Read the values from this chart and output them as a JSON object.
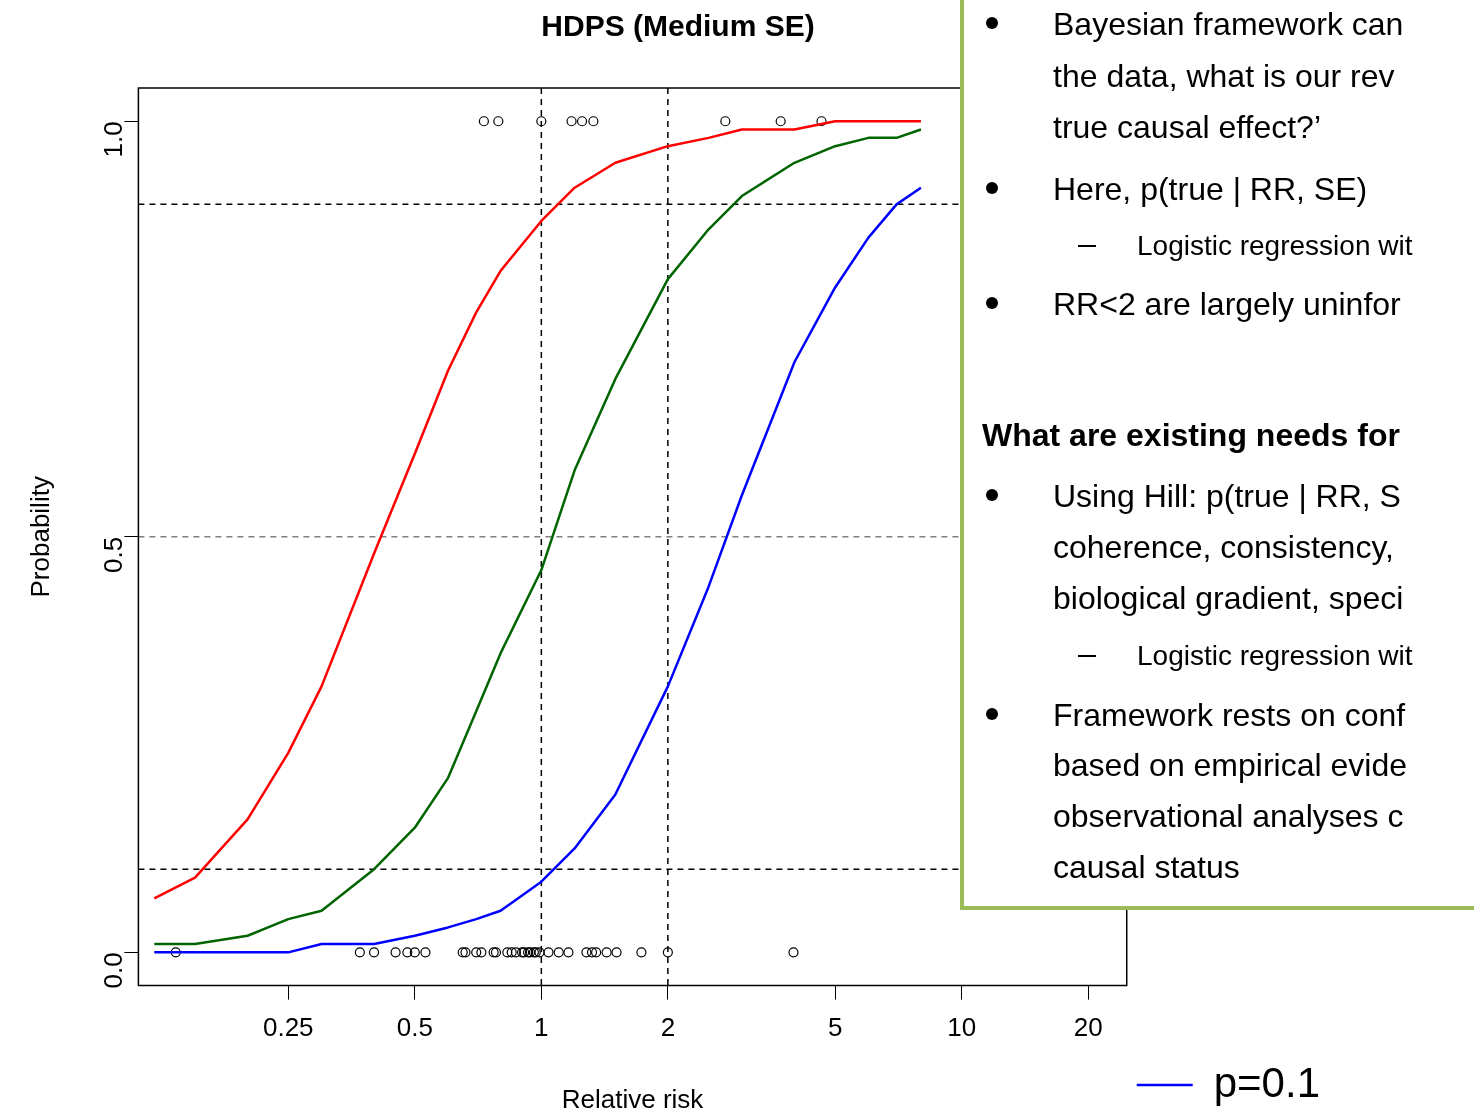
{
  "chart_data": [
    {
      "type": "line",
      "title": "HDPS (Medium SE)",
      "xlabel": "Relative risk",
      "ylabel": "Probability",
      "log": "x",
      "legend": "right",
      "marker": "none",
      "line_style": "solid",
      "x": [
        0.12,
        0.15,
        0.2,
        0.25,
        0.3,
        0.4,
        0.5,
        0.6,
        0.7,
        0.8,
        1,
        1.2,
        1.5,
        2,
        2.5,
        3,
        4,
        5,
        6,
        7,
        8
      ],
      "xlim": [
        0.11,
        24.7
      ],
      "xticks": [
        0.25,
        0.5,
        1,
        2,
        5,
        10,
        20
      ],
      "ylim": [
        -0.04,
        1.04
      ],
      "yticks": [
        {
          "value": 0,
          "label": "0.0"
        },
        {
          "value": 0.5,
          "label": "0.5"
        },
        {
          "value": 1,
          "label": "1.0"
        }
      ],
      "series": [
        {
          "color": "#ff0000",
          "values": [
            0.065,
            0.09,
            0.16,
            0.24,
            0.32,
            0.48,
            0.6,
            0.7,
            0.77,
            0.82,
            0.88,
            0.92,
            0.95,
            0.97,
            0.98,
            0.99,
            0.99,
            1.0,
            1.0,
            1.0,
            1.0
          ]
        },
        {
          "color": "#006400",
          "values": [
            0.01,
            0.01,
            0.02,
            0.04,
            0.05,
            0.1,
            0.15,
            0.21,
            0.29,
            0.36,
            0.46,
            0.58,
            0.69,
            0.81,
            0.87,
            0.91,
            0.95,
            0.97,
            0.98,
            0.98,
            0.99
          ]
        },
        {
          "name": "p=0.1",
          "color": "#0000ff",
          "values": [
            0,
            0,
            0,
            0,
            0.01,
            0.01,
            0.02,
            0.03,
            0.04,
            0.05,
            0.085,
            0.125,
            0.19,
            0.32,
            0.44,
            0.55,
            0.71,
            0.8,
            0.86,
            0.9,
            0.92
          ]
        },
        {
          "type": "scatter",
          "color": "#000000",
          "marker": "circle",
          "x": [
            0.73,
            0.79,
            1.0,
            1.18,
            1.25,
            1.33,
            2.74,
            3.71,
            4.64,
            0.135,
            0.37,
            0.4,
            0.45,
            0.48,
            0.5,
            0.53,
            0.65,
            0.66,
            0.7,
            0.72,
            0.77,
            0.78,
            0.83,
            0.85,
            0.87,
            0.9,
            0.91,
            0.93,
            0.94,
            0.96,
            0.97,
            0.99,
            1.04,
            1.1,
            1.16,
            1.28,
            1.32,
            1.35,
            1.43,
            1.51,
            1.73,
            2.0,
            3.98
          ],
          "values": [
            1,
            1,
            1,
            1,
            1,
            1,
            1,
            1,
            1,
            0,
            0,
            0,
            0,
            0,
            0,
            0,
            0,
            0,
            0,
            0,
            0,
            0,
            0,
            0,
            0,
            0,
            0,
            0,
            0,
            0,
            0,
            0,
            0,
            0,
            0,
            0,
            0,
            0,
            0,
            0,
            0,
            0,
            0
          ]
        }
      ],
      "ref_lines": [
        {
          "axis": "y",
          "value": 0.1,
          "color": "#000000",
          "line_style": "dashed"
        },
        {
          "axis": "y",
          "value": 0.9,
          "color": "#000000",
          "line_style": "dashed"
        },
        {
          "axis": "y",
          "value": 0.5,
          "color": "#808080",
          "line_style": "dashed"
        },
        {
          "axis": "x",
          "value": 1,
          "color": "#000000",
          "line_style": "dashed"
        },
        {
          "axis": "x",
          "value": 2,
          "color": "#000000",
          "line_style": "dashed"
        }
      ]
    },
    {
      "type": "other",
      "annotations": [
        "Bayesian framework can",
        "the data, what is our rev",
        "true causal effect?’",
        "Here, p(true | RR, SE)",
        "Logistic regression wit",
        "RR<2 are largely uninfor",
        "What are existing needs for",
        "Using Hill: p(true | RR, S",
        "coherence, consistency,",
        "biological gradient, speci",
        "Logistic regression wit",
        "Framework rests on conf",
        "based on empirical evide",
        "observational analyses c",
        "causal status"
      ]
    }
  ]
}
